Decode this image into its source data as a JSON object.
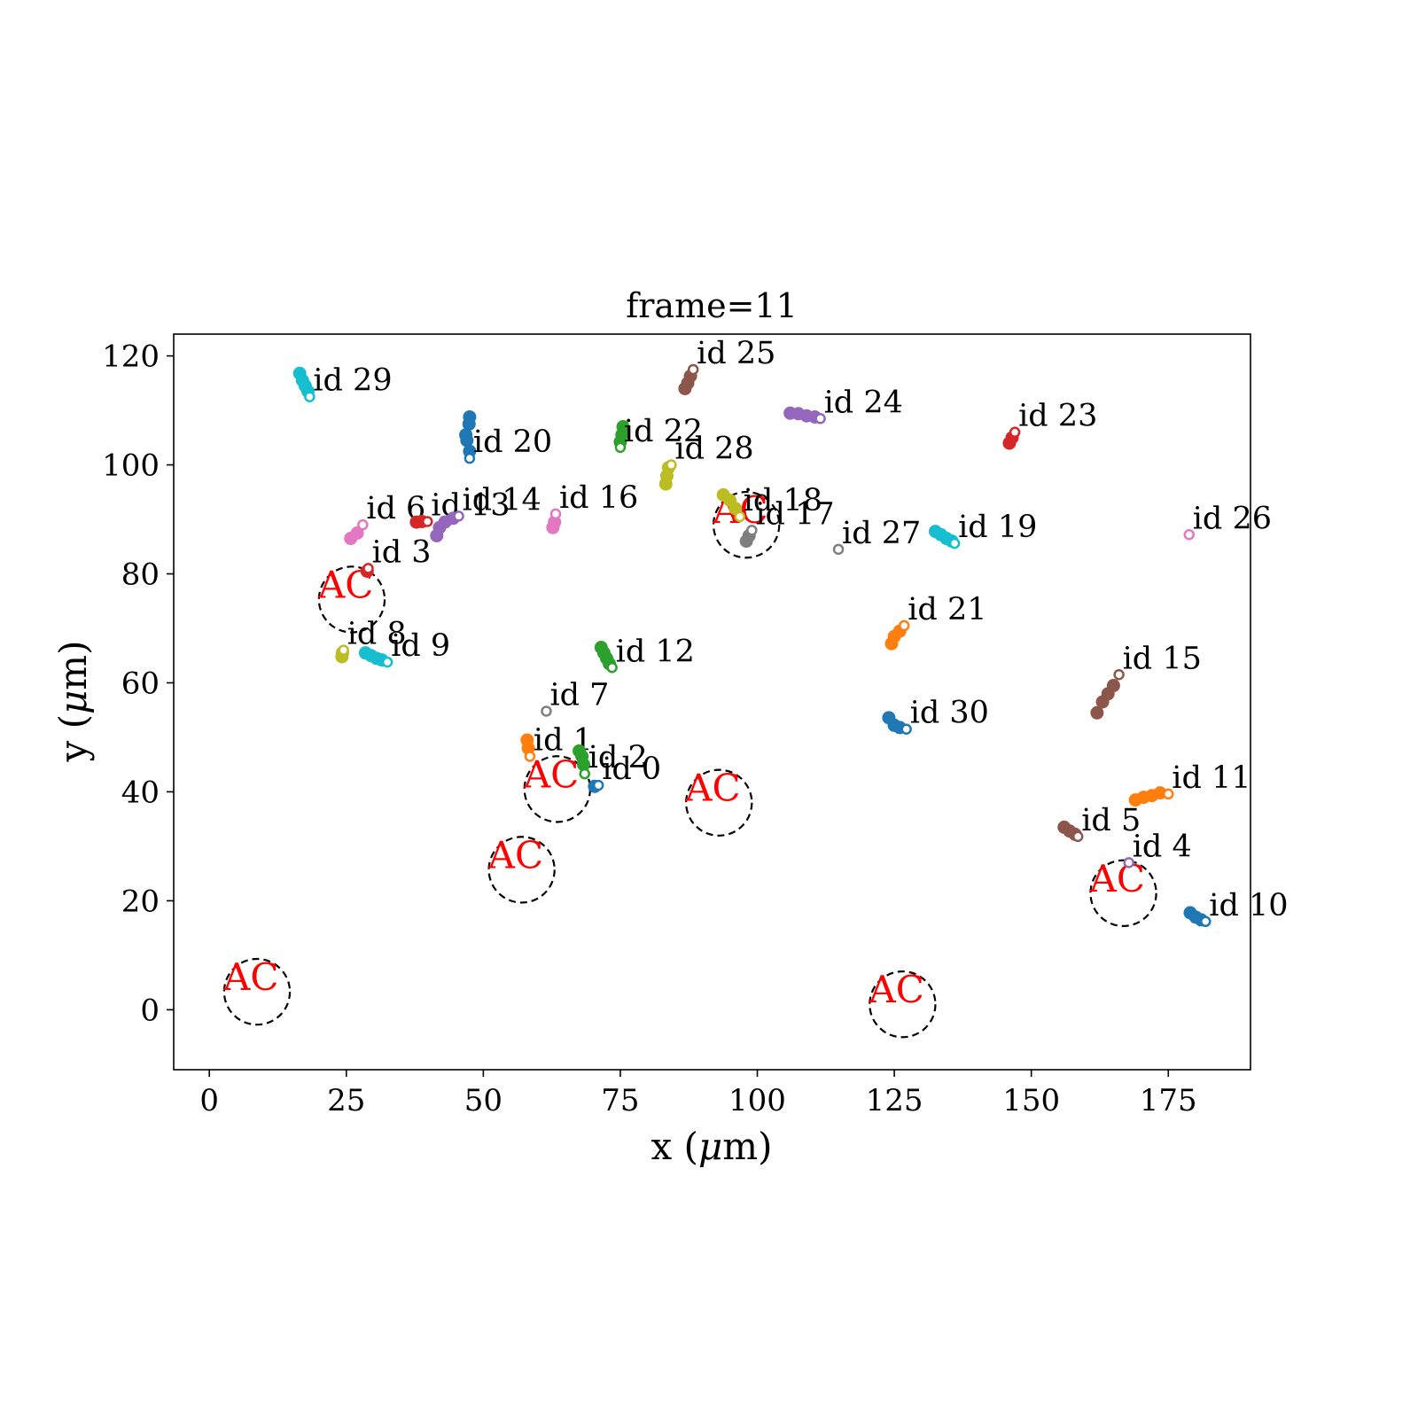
{
  "chart_data": {
    "type": "scatter",
    "title": "frame=11",
    "xlabel_prefix": "x (",
    "ylabel_prefix": "y (",
    "unit_symbol": "μ",
    "unit_rest": "m)",
    "xlim": [
      -6.5,
      190
    ],
    "ylim": [
      -11,
      124
    ],
    "xticks": [
      0,
      25,
      50,
      75,
      100,
      125,
      150,
      175
    ],
    "yticks": [
      0,
      20,
      40,
      60,
      80,
      100,
      120
    ],
    "grid": false,
    "legend": "none",
    "colors": {
      "blue": "#1f77b4",
      "orange": "#ff7f0e",
      "green": "#2ca02c",
      "red": "#d62728",
      "purple": "#9467bd",
      "brown": "#8c564b",
      "pink": "#e377c2",
      "gray": "#7f7f7f",
      "olive": "#bcbd22",
      "cyan": "#17becf",
      "ac_text": "#ff0000",
      "ac_circle": "#000000"
    },
    "ac_label": "AC",
    "ac_circle_radius_um": 6,
    "ac_centers": [
      {
        "x": 26,
        "y": 75.3
      },
      {
        "x": 63.5,
        "y": 40.5
      },
      {
        "x": 57,
        "y": 25.7
      },
      {
        "x": 93,
        "y": 38
      },
      {
        "x": 98,
        "y": 89
      },
      {
        "x": 166.8,
        "y": 21.4
      },
      {
        "x": 8.7,
        "y": 3.3
      },
      {
        "x": 126.5,
        "y": 1
      }
    ],
    "tracks": [
      {
        "label": "id 0",
        "color": "blue",
        "points": [
          [
            70.3,
            41.0
          ],
          [
            71.0,
            41.2
          ]
        ]
      },
      {
        "label": "id 1",
        "color": "orange",
        "points": [
          [
            58.0,
            49.5
          ],
          [
            58.2,
            48.0
          ],
          [
            58.5,
            46.5
          ]
        ]
      },
      {
        "label": "id 2",
        "color": "green",
        "points": [
          [
            67.5,
            47.5
          ],
          [
            68.0,
            46.5
          ],
          [
            68.3,
            45.0
          ],
          [
            68.5,
            43.3
          ]
        ]
      },
      {
        "label": "id 3",
        "color": "red",
        "points": [
          [
            28.8,
            80.5
          ],
          [
            29.0,
            81.0
          ]
        ]
      },
      {
        "label": "id 4",
        "color": "purple",
        "points": [
          [
            167.8,
            27.0
          ]
        ]
      },
      {
        "label": "id 5",
        "color": "brown",
        "points": [
          [
            156.0,
            33.5
          ],
          [
            157.0,
            32.8
          ],
          [
            158.0,
            32.2
          ],
          [
            158.5,
            31.8
          ]
        ]
      },
      {
        "label": "id 6",
        "color": "pink",
        "points": [
          [
            25.8,
            86.5
          ],
          [
            27.0,
            87.5
          ],
          [
            28.0,
            89.0
          ]
        ]
      },
      {
        "label": "id 7",
        "color": "gray",
        "points": [
          [
            61.5,
            54.8
          ]
        ]
      },
      {
        "label": "id 8",
        "color": "olive",
        "points": [
          [
            24.2,
            64.8
          ],
          [
            24.3,
            65.5
          ],
          [
            24.5,
            66.0
          ]
        ]
      },
      {
        "label": "id 9",
        "color": "cyan",
        "points": [
          [
            28.5,
            65.5
          ],
          [
            29.5,
            65.0
          ],
          [
            30.5,
            64.5
          ],
          [
            31.5,
            64.2
          ],
          [
            32.5,
            63.8
          ]
        ]
      },
      {
        "label": "id 10",
        "color": "blue",
        "points": [
          [
            179.0,
            17.8
          ],
          [
            180.0,
            17.0
          ],
          [
            181.0,
            16.5
          ],
          [
            181.8,
            16.2
          ]
        ]
      },
      {
        "label": "id 11",
        "color": "orange",
        "points": [
          [
            169.0,
            38.5
          ],
          [
            170.5,
            39.0
          ],
          [
            172.0,
            39.3
          ],
          [
            173.5,
            39.8
          ],
          [
            175.0,
            39.6
          ]
        ]
      },
      {
        "label": "id 12",
        "color": "green",
        "points": [
          [
            71.5,
            66.5
          ],
          [
            72.0,
            65.5
          ],
          [
            72.5,
            64.5
          ],
          [
            73.0,
            63.5
          ],
          [
            73.5,
            62.8
          ]
        ]
      },
      {
        "label": "id 13",
        "color": "red",
        "points": [
          [
            37.8,
            89.5
          ],
          [
            38.8,
            89.6
          ],
          [
            39.8,
            89.6
          ]
        ]
      },
      {
        "label": "id 14",
        "color": "purple",
        "points": [
          [
            41.5,
            87.0
          ],
          [
            42.0,
            88.5
          ],
          [
            43.0,
            89.5
          ],
          [
            44.5,
            90.2
          ],
          [
            45.5,
            90.6
          ]
        ]
      },
      {
        "label": "id 15",
        "color": "brown",
        "points": [
          [
            162.0,
            54.5
          ],
          [
            163.0,
            56.5
          ],
          [
            164.0,
            58.0
          ],
          [
            165.0,
            59.5
          ],
          [
            166.0,
            61.5
          ]
        ]
      },
      {
        "label": "id 16",
        "color": "pink",
        "points": [
          [
            62.7,
            88.5
          ],
          [
            63.0,
            89.5
          ],
          [
            63.2,
            91.0
          ]
        ]
      },
      {
        "label": "id 17",
        "color": "gray",
        "points": [
          [
            98.0,
            86.0
          ],
          [
            98.5,
            87.0
          ],
          [
            99.0,
            88.0
          ]
        ]
      },
      {
        "label": "id 18",
        "color": "olive",
        "points": [
          [
            93.8,
            94.5
          ],
          [
            95.0,
            93.5
          ],
          [
            96.0,
            92.0
          ],
          [
            96.8,
            90.5
          ]
        ]
      },
      {
        "label": "id 19",
        "color": "cyan",
        "points": [
          [
            132.5,
            87.8
          ],
          [
            133.5,
            87.2
          ],
          [
            134.5,
            86.5
          ],
          [
            135.5,
            86.0
          ],
          [
            136.0,
            85.6
          ]
        ]
      },
      {
        "label": "id 20",
        "color": "blue",
        "points": [
          [
            47.5,
            108.8
          ],
          [
            47.4,
            107.5
          ],
          [
            46.8,
            105.5
          ],
          [
            47.0,
            104.5
          ],
          [
            47.5,
            102.5
          ],
          [
            47.5,
            101.2
          ]
        ]
      },
      {
        "label": "id 21",
        "color": "orange",
        "points": [
          [
            124.5,
            67.2
          ],
          [
            125.0,
            68.5
          ],
          [
            126.0,
            69.5
          ],
          [
            126.8,
            70.5
          ]
        ]
      },
      {
        "label": "id 22",
        "color": "green",
        "points": [
          [
            75.5,
            107.0
          ],
          [
            75.3,
            105.5
          ],
          [
            75.0,
            104.2
          ],
          [
            75.0,
            103.2
          ]
        ]
      },
      {
        "label": "id 23",
        "color": "red",
        "points": [
          [
            146.0,
            104.0
          ],
          [
            146.5,
            105.0
          ],
          [
            147.0,
            106.0
          ]
        ]
      },
      {
        "label": "id 24",
        "color": "purple",
        "points": [
          [
            106.0,
            109.5
          ],
          [
            107.5,
            109.4
          ],
          [
            109.0,
            109.0
          ],
          [
            110.5,
            108.8
          ],
          [
            111.5,
            108.5
          ]
        ]
      },
      {
        "label": "id 25",
        "color": "brown",
        "points": [
          [
            86.8,
            114.0
          ],
          [
            87.3,
            115.0
          ],
          [
            87.8,
            116.3
          ],
          [
            88.3,
            117.5
          ]
        ]
      },
      {
        "label": "id 26",
        "color": "pink",
        "points": [
          [
            178.8,
            87.2
          ]
        ]
      },
      {
        "label": "id 27",
        "color": "gray",
        "points": [
          [
            114.8,
            84.5
          ]
        ]
      },
      {
        "label": "id 28",
        "color": "olive",
        "points": [
          [
            83.3,
            96.5
          ],
          [
            83.5,
            98.0
          ],
          [
            83.8,
            99.5
          ],
          [
            84.3,
            100.0
          ]
        ]
      },
      {
        "label": "id 29",
        "color": "cyan",
        "points": [
          [
            16.5,
            116.8
          ],
          [
            17.0,
            115.5
          ],
          [
            17.5,
            114.5
          ],
          [
            18.0,
            113.5
          ],
          [
            18.3,
            112.5
          ]
        ]
      },
      {
        "label": "id 30",
        "color": "blue",
        "points": [
          [
            124.0,
            53.6
          ],
          [
            125.0,
            52.2
          ],
          [
            126.0,
            51.8
          ],
          [
            127.2,
            51.5
          ]
        ]
      }
    ]
  }
}
